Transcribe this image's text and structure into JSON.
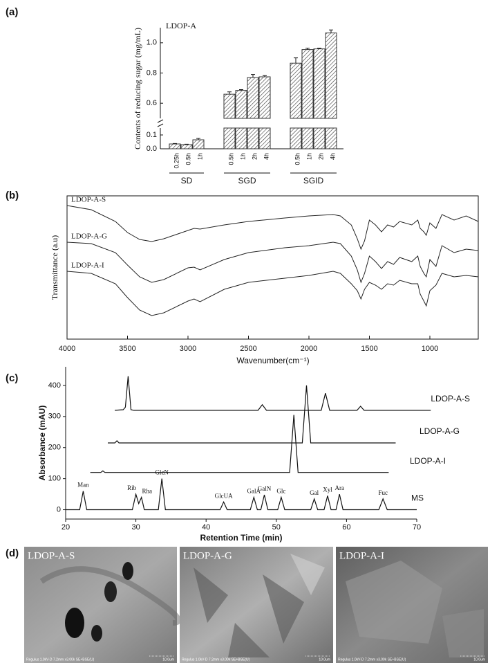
{
  "chart_data": [
    {
      "type": "bar",
      "panel_label": "(a)",
      "title": "LDOP-A",
      "ylabel": "Contents of reducing sugar (mg/mL)",
      "color": "#333333",
      "ylim": [
        0,
        1.1
      ],
      "ybreak": [
        0.15,
        0.5
      ],
      "yticks": [
        {
          "value": 0,
          "label": "0.0"
        },
        {
          "value": 0.1,
          "label": "0.1"
        },
        {
          "value": 0.6,
          "label": "0.6"
        },
        {
          "value": 0.8,
          "label": "0.8"
        },
        {
          "value": 1,
          "label": "1.0"
        }
      ],
      "groups": [
        {
          "name": "SD",
          "categories": [
            "0.25h",
            "0.5h",
            "1h"
          ],
          "values": [
            0.035,
            0.03,
            0.065
          ],
          "errors": [
            0.003,
            0.003,
            0.01
          ]
        },
        {
          "name": "SGD",
          "categories": [
            "0.5h",
            "1h",
            "2h",
            "4h"
          ],
          "values": [
            0.66,
            0.685,
            0.77,
            0.775
          ],
          "errors": [
            0.015,
            0.005,
            0.02,
            0.008
          ]
        },
        {
          "name": "SGID",
          "categories": [
            "0.5h",
            "1h",
            "2h",
            "4h"
          ],
          "values": [
            0.865,
            0.955,
            0.96,
            1.065
          ],
          "errors": [
            0.035,
            0.01,
            0.005,
            0.02
          ]
        }
      ]
    },
    {
      "type": "line",
      "panel_label": "(b)",
      "xlabel": "Wavenumber(cm⁻¹)",
      "ylabel": "Transmittance (a.u)",
      "color": "#222222",
      "xlim": [
        4000,
        600
      ],
      "xticks": [
        4000,
        3500,
        3000,
        2500,
        2000,
        1500,
        1000
      ],
      "ylim": [
        0,
        207
      ],
      "x": [
        4000,
        3800,
        3600,
        3500,
        3400,
        3300,
        3200,
        3000,
        2950,
        2900,
        2700,
        2500,
        2200,
        2000,
        1800,
        1740,
        1650,
        1600,
        1570,
        1540,
        1500,
        1450,
        1400,
        1350,
        1300,
        1250,
        1150,
        1100,
        1080,
        1050,
        1030,
        1000,
        950,
        900,
        800,
        700,
        600
      ],
      "series": [
        {
          "name": "LDOP-A-S",
          "values": [
            193,
            187,
            170,
            154,
            144,
            141,
            145,
            157,
            160,
            159,
            165,
            170,
            175,
            178,
            180,
            178,
            165,
            145,
            130,
            142,
            172,
            165,
            155,
            165,
            162,
            170,
            165,
            172,
            160,
            155,
            150,
            168,
            160,
            180,
            172,
            178,
            170
          ]
        },
        {
          "name": "LDOP-A-G",
          "values": [
            140,
            138,
            125,
            107,
            90,
            82,
            86,
            103,
            104,
            100,
            115,
            125,
            132,
            135,
            140,
            138,
            120,
            100,
            82,
            95,
            120,
            112,
            102,
            112,
            108,
            118,
            112,
            120,
            105,
            95,
            90,
            115,
            105,
            135,
            125,
            130,
            128
          ]
        },
        {
          "name": "LDOP-A-I",
          "values": [
            98,
            95,
            80,
            60,
            42,
            34,
            38,
            55,
            58,
            54,
            72,
            82,
            88,
            92,
            98,
            95,
            80,
            70,
            58,
            72,
            82,
            78,
            72,
            80,
            78,
            85,
            80,
            80,
            65,
            55,
            48,
            70,
            78,
            95,
            90,
            92,
            90
          ]
        }
      ]
    },
    {
      "type": "line",
      "panel_label": "(c)",
      "xlabel": "Retention Time (min)",
      "ylabel": "Absorbance (mAU)",
      "color": "#111111",
      "xlim": [
        20,
        70
      ],
      "xticks": [
        20,
        30,
        40,
        50,
        60,
        70
      ],
      "ylim": [
        -30,
        460
      ],
      "yticks": [
        0,
        100,
        200,
        300,
        400
      ],
      "series": [
        {
          "name": "LDOP-A-S",
          "x": [
            27,
            28.2,
            28.5,
            28.9,
            29.3,
            29.7,
            47.4,
            48,
            48.6,
            56.4,
            57,
            57.6,
            61.5,
            62,
            62.5,
            72
          ],
          "values": [
            320,
            322,
            330,
            430,
            322,
            320,
            320,
            338,
            320,
            320,
            375,
            320,
            320,
            333,
            320,
            320
          ]
        },
        {
          "name": "LDOP-A-G",
          "x": [
            26,
            27,
            27.3,
            27.6,
            53.7,
            54.3,
            54.9,
            67
          ],
          "values": [
            215,
            215,
            222,
            215,
            215,
            400,
            215,
            215
          ]
        },
        {
          "name": "LDOP-A-I",
          "x": [
            23.5,
            25,
            25.3,
            25.6,
            51.9,
            52.5,
            53.1,
            66
          ],
          "values": [
            120,
            120,
            125,
            120,
            120,
            305,
            120,
            120
          ]
        },
        {
          "name": "MS",
          "x": [
            20,
            22,
            22.5,
            23,
            29.5,
            30,
            30.4,
            30.8,
            31.2,
            33.2,
            33.7,
            34.2,
            42,
            42.5,
            43,
            46.3,
            46.8,
            47.3,
            47.8,
            48.3,
            48.8,
            50.2,
            50.7,
            51.2,
            54.9,
            55.4,
            55.9,
            56.8,
            57.3,
            57.8,
            58.5,
            59,
            59.5,
            64.6,
            65.2,
            65.8,
            70
          ],
          "values": [
            0,
            0,
            60,
            0,
            0,
            50,
            20,
            40,
            0,
            0,
            100,
            0,
            0,
            25,
            0,
            0,
            40,
            0,
            0,
            48,
            0,
            0,
            40,
            0,
            0,
            35,
            0,
            0,
            45,
            0,
            0,
            50,
            0,
            0,
            35,
            0,
            0
          ],
          "peak_labels": [
            null,
            null,
            "Man",
            null,
            null,
            "Rib",
            null,
            "Rha",
            null,
            null,
            "GlcN",
            null,
            null,
            "GlcUA",
            null,
            null,
            "GalA",
            null,
            null,
            "GalN",
            null,
            null,
            "Glc",
            null,
            null,
            "Gal",
            null,
            null,
            "Xyl",
            null,
            null,
            "Ara",
            null,
            null,
            "Fuc",
            null,
            null
          ]
        }
      ]
    }
  ],
  "images": {
    "panel_label": "(d)",
    "items": [
      {
        "label": "LDOP-A-S",
        "info": "Regulus 1.0kV-D 7.2mm x3.00k SE+BSE(U)",
        "scale": "10.0um"
      },
      {
        "label": "LDOP-A-G",
        "info": "Regulus 1.0kV-D 7.2mm x3.00k SE+BSE(U)",
        "scale": "10.0um"
      },
      {
        "label": "LDOP-A-I",
        "info": "Regulus 1.0kV-D 7.2mm x3.00k SE+BSE(U)",
        "scale": "10.0um"
      }
    ]
  }
}
